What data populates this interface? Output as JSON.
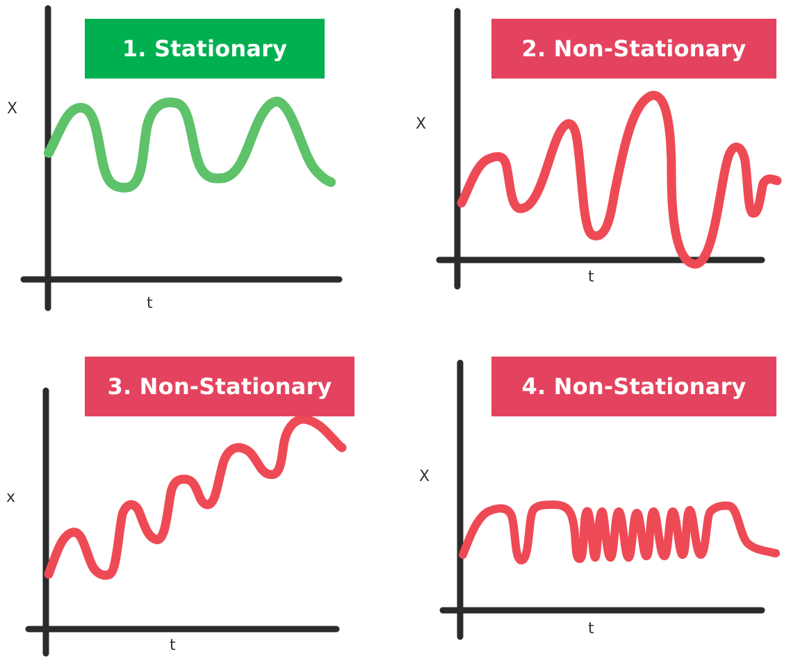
{
  "colors": {
    "stationary": "#00b050",
    "non_stationary": "#e44360",
    "curve_green": "#5ec26a",
    "curve_red": "#ee4a55",
    "axis": "#2b2b2b"
  },
  "panels": [
    {
      "id": "panel-1",
      "title": "1. Stationary",
      "status": "stationary",
      "xlabel": "t",
      "ylabel": "X",
      "curve_color": "curve_green",
      "pattern": "constant mean, constant amplitude, constant period"
    },
    {
      "id": "panel-2",
      "title": "2. Non-Stationary",
      "status": "non_stationary",
      "xlabel": "t",
      "ylabel": "X",
      "curve_color": "curve_red",
      "pattern": "increasing then decreasing amplitude"
    },
    {
      "id": "panel-3",
      "title": "3. Non-Stationary",
      "status": "non_stationary",
      "xlabel": "t",
      "ylabel": "x",
      "curve_color": "curve_red",
      "pattern": "upward trend"
    },
    {
      "id": "panel-4",
      "title": "4. Non-Stationary",
      "status": "non_stationary",
      "xlabel": "t",
      "ylabel": "X",
      "curve_color": "curve_red",
      "pattern": "changing frequency"
    }
  ]
}
